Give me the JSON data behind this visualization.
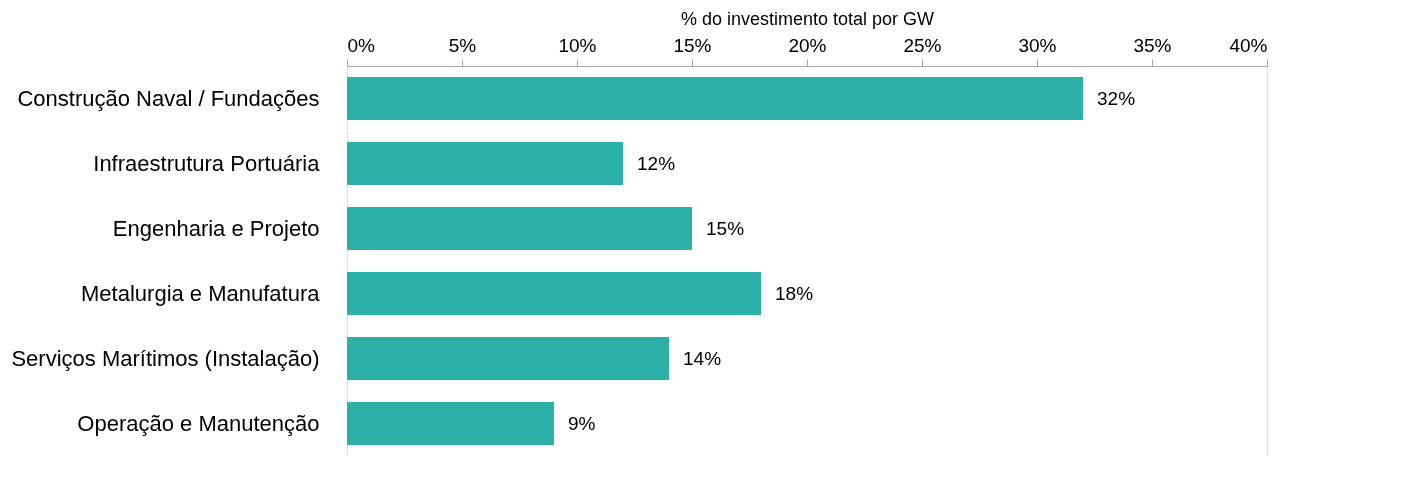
{
  "chart_data": {
    "type": "bar",
    "orientation": "horizontal",
    "xlabel": "% do investimento total por GW",
    "categories": [
      "Construção Naval / Fundações",
      "Infraestrutura Portuária",
      "Engenharia e Projeto",
      "Metalurgia e Manufatura",
      "Serviços Marítimos (Instalação)",
      "Operação e Manutenção"
    ],
    "values": [
      32,
      12,
      15,
      18,
      14,
      9
    ],
    "value_labels": [
      "32%",
      "12%",
      "15%",
      "18%",
      "14%",
      "9%"
    ],
    "color": "#2bb1a8",
    "xlim": [
      0,
      40
    ],
    "xticks": [
      {
        "value": 0,
        "label": "0%"
      },
      {
        "value": 5,
        "label": "5%"
      },
      {
        "value": 10,
        "label": "10%"
      },
      {
        "value": 15,
        "label": "15%"
      },
      {
        "value": 20,
        "label": "20%"
      },
      {
        "value": 25,
        "label": "25%"
      },
      {
        "value": 30,
        "label": "30%"
      },
      {
        "value": 35,
        "label": "35%"
      },
      {
        "value": 40,
        "label": "40%"
      }
    ],
    "grid": false
  }
}
